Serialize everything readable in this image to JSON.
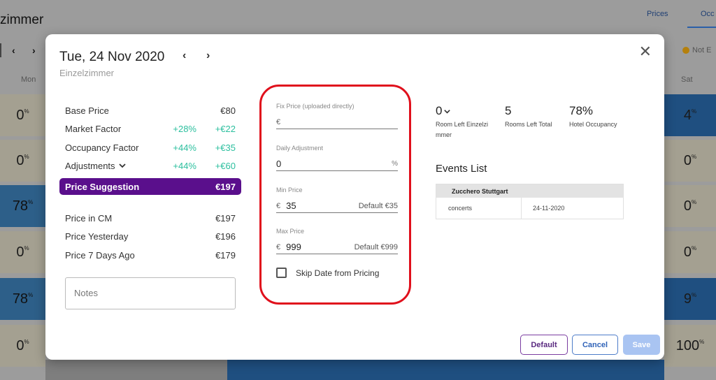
{
  "background": {
    "title": "zimmer",
    "tabs": [
      "Prices",
      "Occ"
    ],
    "nav_prev": "‹",
    "nav_next": "›",
    "legend_label": "Not E",
    "days": {
      "mon": "Mon",
      "sat": "Sat"
    },
    "left_cells": [
      "0",
      "0",
      "78",
      "0",
      "78",
      "0"
    ],
    "right_cells": [
      "4",
      "0",
      "0",
      "0",
      "9",
      "100"
    ],
    "percent": "%"
  },
  "modal": {
    "date": "Tue, 24 Nov 2020",
    "prev_icon": "‹",
    "next_icon": "›",
    "room_type": "Einzelzimmer",
    "close_icon": "✕",
    "pricing": {
      "rows": [
        {
          "label": "Base Price",
          "pct": "",
          "value": "€80"
        },
        {
          "label": "Market Factor",
          "pct": "+28%",
          "value": "+€22"
        },
        {
          "label": "Occupancy Factor",
          "pct": "+44%",
          "value": "+€35"
        },
        {
          "label": "Adjustments",
          "pct": "+44%",
          "value": "+€60"
        }
      ],
      "suggestion": {
        "label": "Price Suggestion",
        "value": "€197"
      },
      "history": [
        {
          "label": "Price in CM",
          "value": "€197"
        },
        {
          "label": "Price Yesterday",
          "value": "€196"
        },
        {
          "label": "Price 7 Days Ago",
          "value": "€179"
        }
      ],
      "notes_placeholder": "Notes"
    },
    "fields": {
      "fix_price": {
        "label": "Fix Price (uploaded directly)",
        "currency": "€",
        "value": ""
      },
      "daily_adjustment": {
        "label": "Daily Adjustment",
        "value": "0",
        "suffix": "%"
      },
      "min_price": {
        "label": "Min Price",
        "currency": "€",
        "value": "35",
        "default": "Default €35"
      },
      "max_price": {
        "label": "Max Price",
        "currency": "€",
        "value": "999",
        "default": "Default €999"
      },
      "skip_label": "Skip Date from Pricing"
    },
    "stats": [
      {
        "value": "0",
        "label": "Room Left Einzelzi mmer"
      },
      {
        "value": "5",
        "label": "Rooms Left Total"
      },
      {
        "value": "78%",
        "label": "Hotel Occupancy"
      }
    ],
    "events": {
      "title": "Events List",
      "header": "Zucchero Stuttgart",
      "rows": [
        {
          "category": "concerts",
          "date": "24-11-2020"
        }
      ]
    },
    "buttons": {
      "default": "Default",
      "cancel": "Cancel",
      "save": "Save"
    }
  }
}
